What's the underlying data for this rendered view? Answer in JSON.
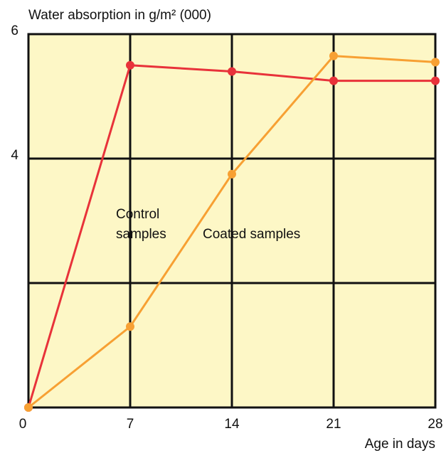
{
  "chart_data": {
    "type": "line",
    "title": "Water absorption in g/m² (000)",
    "x_label": "Age in days",
    "x": [
      0,
      7,
      14,
      21,
      28
    ],
    "series": [
      {
        "name": "Control samples",
        "color": "#e8323a",
        "values": [
          0,
          5.5,
          5.4,
          5.25,
          5.25
        ]
      },
      {
        "name": "Coated samples",
        "color": "#f7a033",
        "values": [
          0,
          1.3,
          3.75,
          5.65,
          5.55
        ]
      }
    ],
    "annotations": [
      [
        "Control",
        "samples"
      ],
      [
        "Coated samples"
      ]
    ],
    "xlim": [
      0,
      28
    ],
    "xticks": [
      0,
      7,
      14,
      21,
      28
    ],
    "ylim": [
      0,
      6
    ],
    "yticks": [
      4,
      6
    ],
    "ygrid": [
      2,
      4,
      6
    ],
    "grid": true,
    "background": "#fdf7c6"
  }
}
